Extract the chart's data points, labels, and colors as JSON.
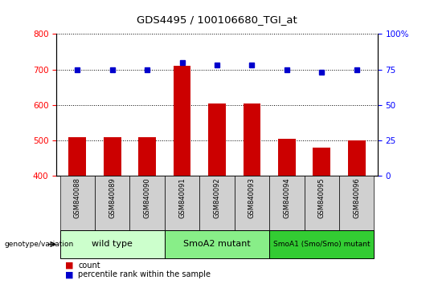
{
  "title": "GDS4495 / 100106680_TGI_at",
  "samples": [
    "GSM840088",
    "GSM840089",
    "GSM840090",
    "GSM840091",
    "GSM840092",
    "GSM840093",
    "GSM840094",
    "GSM840095",
    "GSM840096"
  ],
  "bar_values": [
    510,
    510,
    510,
    710,
    605,
    605,
    505,
    480,
    500
  ],
  "dot_values": [
    75,
    75,
    75,
    80,
    78,
    78,
    75,
    73,
    75
  ],
  "bar_color": "#cc0000",
  "dot_color": "#0000cc",
  "ylim_left": [
    400,
    800
  ],
  "ylim_right": [
    0,
    100
  ],
  "yticks_left": [
    400,
    500,
    600,
    700,
    800
  ],
  "yticks_right": [
    0,
    25,
    50,
    75,
    100
  ],
  "groups": [
    {
      "label": "wild type",
      "start": 0,
      "end": 3,
      "color": "#ccffcc"
    },
    {
      "label": "SmoA2 mutant",
      "start": 3,
      "end": 6,
      "color": "#88ee88"
    },
    {
      "label": "SmoA1 (Smo/Smo) mutant",
      "start": 6,
      "end": 9,
      "color": "#33cc33"
    }
  ],
  "genotype_label": "genotype/variation",
  "legend_count_label": "count",
  "legend_pct_label": "percentile rank within the sample",
  "sample_box_color": "#d0d0d0",
  "plot_bg_color": "#ffffff"
}
